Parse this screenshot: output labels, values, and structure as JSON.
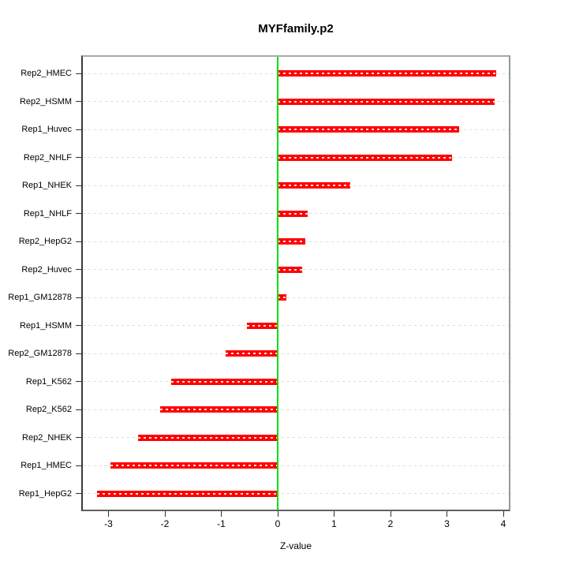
{
  "chart_data": {
    "type": "bar",
    "orientation": "horizontal",
    "title": "MYFfamily.p2",
    "xlabel": "Z-value",
    "ylabel": "",
    "categories": [
      "Rep2_HMEC",
      "Rep2_HSMM",
      "Rep1_Huvec",
      "Rep2_NHLF",
      "Rep1_NHEK",
      "Rep1_NHLF",
      "Rep2_HepG2",
      "Rep2_Huvec",
      "Rep1_GM12878",
      "Rep1_HSMM",
      "Rep2_GM12878",
      "Rep1_K562",
      "Rep2_K562",
      "Rep2_NHEK",
      "Rep1_HMEC",
      "Rep1_HepG2"
    ],
    "values": [
      3.87,
      3.84,
      3.21,
      3.09,
      1.28,
      0.53,
      0.49,
      0.44,
      0.16,
      -0.55,
      -0.92,
      -1.89,
      -2.09,
      -2.47,
      -2.96,
      -3.2
    ],
    "row_order": "top-to-bottom",
    "x_ticks": [
      -3,
      -2,
      -1,
      0,
      1,
      2,
      3,
      4
    ],
    "xlim": [
      -3.48,
      4.13
    ],
    "bars_anchored_at": 0,
    "bar_color": "#ff0000",
    "zero_line_color": "#00e100",
    "gridline_color": "#dcdcdc",
    "gridline_style": "dashed",
    "grid": "horizontal row lines",
    "legend": "none"
  }
}
